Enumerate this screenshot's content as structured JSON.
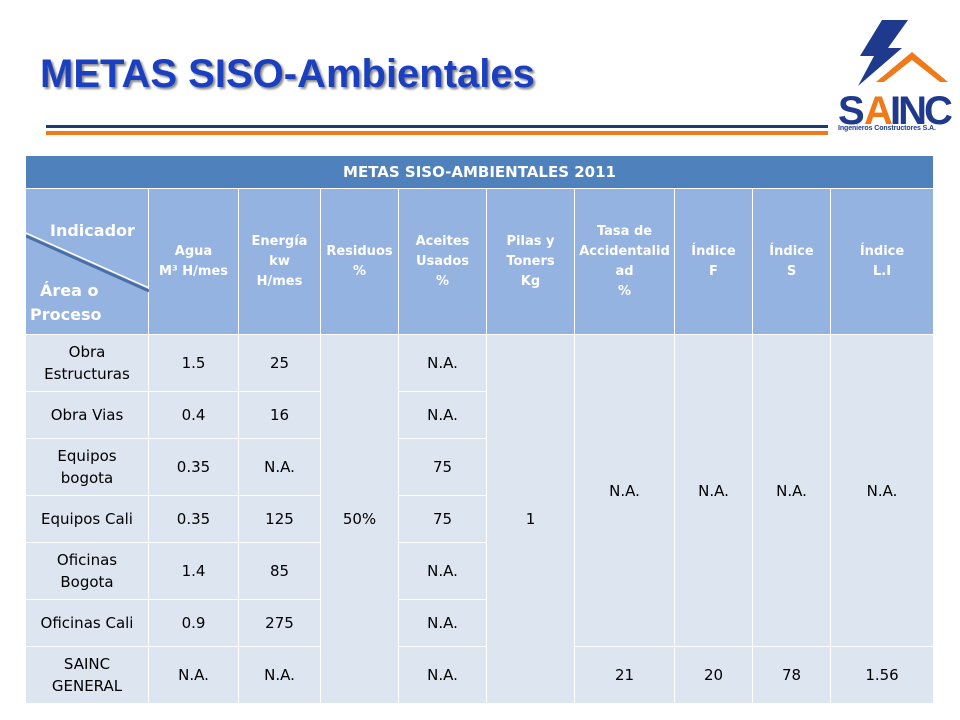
{
  "slide": {
    "title": "METAS SISO-Ambientales"
  },
  "logo": {
    "name": "SAINC",
    "tagline": "Ingenieros Constructores S.A."
  },
  "colors": {
    "title": "#1a3fbf",
    "header_dark": "#4f81bd",
    "header_light": "#95b3e0",
    "cell": "#dde5f1",
    "accent": "#f07a1a"
  },
  "table": {
    "title": "METAS SISO-AMBIENTALES 2011",
    "corner": {
      "top": "Indicador",
      "bottom_l1": "Área o",
      "bottom_l2": "Proceso"
    },
    "columns": [
      {
        "l1": "Agua",
        "l2": "M³ H/mes",
        "l3": "",
        "l4": ""
      },
      {
        "l1": "Energía",
        "l2": "kw",
        "l3": "H/mes",
        "l4": ""
      },
      {
        "l1": "Residuos",
        "l2": "%",
        "l3": "",
        "l4": ""
      },
      {
        "l1": "Aceites",
        "l2": "Usados",
        "l3": "%",
        "l4": ""
      },
      {
        "l1": "Pilas y",
        "l2": "Toners",
        "l3": "Kg",
        "l4": ""
      },
      {
        "l1": "Tasa de",
        "l2": "Accidentalid",
        "l3": "ad",
        "l4": "%"
      },
      {
        "l1": "Índice",
        "l2": "F",
        "l3": "",
        "l4": ""
      },
      {
        "l1": "Índice",
        "l2": "S",
        "l3": "",
        "l4": ""
      },
      {
        "l1": "Índice",
        "l2": "L.I",
        "l3": "",
        "l4": ""
      }
    ],
    "rows": [
      {
        "area_l1": "Obra",
        "area_l2": "Estructuras",
        "agua": "1.5",
        "energia": "25",
        "aceites": "N.A."
      },
      {
        "area_l1": "Obra Vias",
        "area_l2": "",
        "agua": "0.4",
        "energia": "16",
        "aceites": "N.A."
      },
      {
        "area_l1": "Equipos",
        "area_l2": "bogota",
        "agua": "0.35",
        "energia": "N.A.",
        "aceites": "75"
      },
      {
        "area_l1": "Equipos Cali",
        "area_l2": "",
        "agua": "0.35",
        "energia": "125",
        "aceites": "75"
      },
      {
        "area_l1": "Oficinas",
        "area_l2": "Bogota",
        "agua": "1.4",
        "energia": "85",
        "aceites": "N.A."
      },
      {
        "area_l1": "Oficinas Cali",
        "area_l2": "",
        "agua": "0.9",
        "energia": "275",
        "aceites": "N.A."
      },
      {
        "area_l1": "SAINC",
        "area_l2": "GENERAL",
        "agua": "N.A.",
        "energia": "N.A.",
        "aceites": "N.A."
      }
    ],
    "merged": {
      "residuos": "50%",
      "pilas": "1",
      "tasa": "N.A.",
      "indice_f": "N.A.",
      "indice_s": "N.A.",
      "indice_li": "N.A."
    },
    "general": {
      "tasa": "21",
      "indice_f": "20",
      "indice_s": "78",
      "indice_li": "1.56"
    }
  }
}
